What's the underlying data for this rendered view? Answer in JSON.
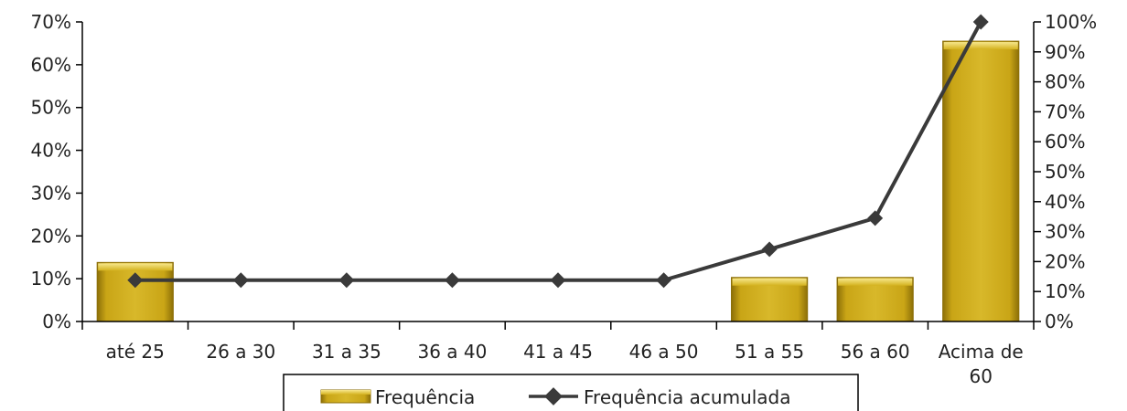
{
  "chart_data": {
    "type": "bar",
    "categories": [
      "até 25",
      "26 a 30",
      "31 a 35",
      "36 a 40",
      "41 a 45",
      "46 a 50",
      "51 a 55",
      "56 a 60",
      "Acima de 60"
    ],
    "category_lines": [
      [
        "até 25"
      ],
      [
        "26 a 30"
      ],
      [
        "31 a 35"
      ],
      [
        "36 a 40"
      ],
      [
        "41 a 45"
      ],
      [
        "46 a 50"
      ],
      [
        "51 a 55"
      ],
      [
        "56 a 60"
      ],
      [
        "Acima de",
        "60"
      ]
    ],
    "series": [
      {
        "name": "Frequência",
        "type": "bar",
        "axis": "left",
        "values": [
          13.8,
          0,
          0,
          0,
          0,
          0,
          10.3,
          10.3,
          65.5
        ]
      },
      {
        "name": "Frequência acumulada",
        "type": "line",
        "axis": "right",
        "values": [
          13.8,
          13.8,
          13.8,
          13.8,
          13.8,
          13.8,
          24.1,
          34.5,
          100
        ]
      }
    ],
    "left_axis": {
      "ylim": [
        0,
        70
      ],
      "ticks": [
        "0%",
        "10%",
        "20%",
        "30%",
        "40%",
        "50%",
        "60%",
        "70%"
      ]
    },
    "right_axis": {
      "ylim": [
        0,
        100
      ],
      "ticks": [
        "0%",
        "10%",
        "20%",
        "30%",
        "40%",
        "50%",
        "60%",
        "70%",
        "80%",
        "90%",
        "100%"
      ]
    },
    "legend": {
      "position": "bottom",
      "items": [
        "Frequência",
        "Frequência acumulada"
      ]
    },
    "grid": false,
    "colors": {
      "bar": "#c9a516",
      "bar_light": "#f2dc6a",
      "bar_dark": "#8c6f08",
      "line": "#3a3a3a",
      "axis": "#000000"
    }
  }
}
